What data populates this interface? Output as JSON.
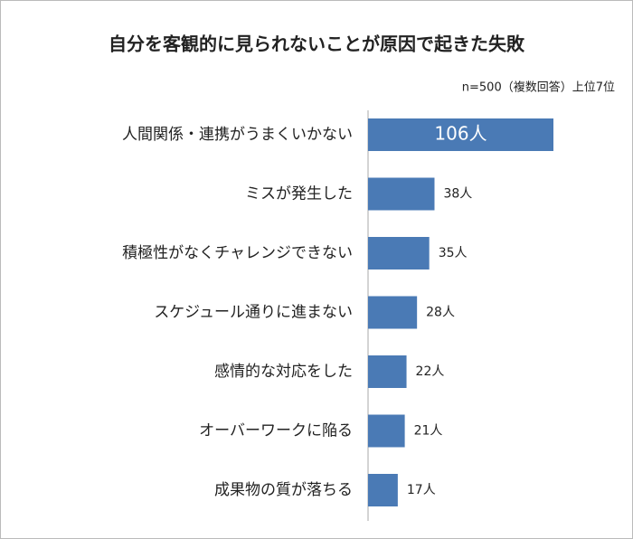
{
  "chart_data": {
    "type": "bar",
    "orientation": "horizontal",
    "title": "自分を客観的に見られないことが原因で起きた失敗",
    "subtitle": "n=500（複数回答）上位7位",
    "categories": [
      "人間関係・連携がうまくいかない",
      "ミスが発生した",
      "積極性がなくチャレンジできない",
      "スケジュール通りに進まない",
      "感情的な対応をした",
      "オーバーワークに陥る",
      "成果物の質が落ちる"
    ],
    "values": [
      106,
      38,
      35,
      28,
      22,
      21,
      17
    ],
    "value_labels": [
      "106人",
      "38人",
      "35人",
      "28人",
      "22人",
      "21人",
      "17人"
    ],
    "color": "#4a7ab5"
  }
}
